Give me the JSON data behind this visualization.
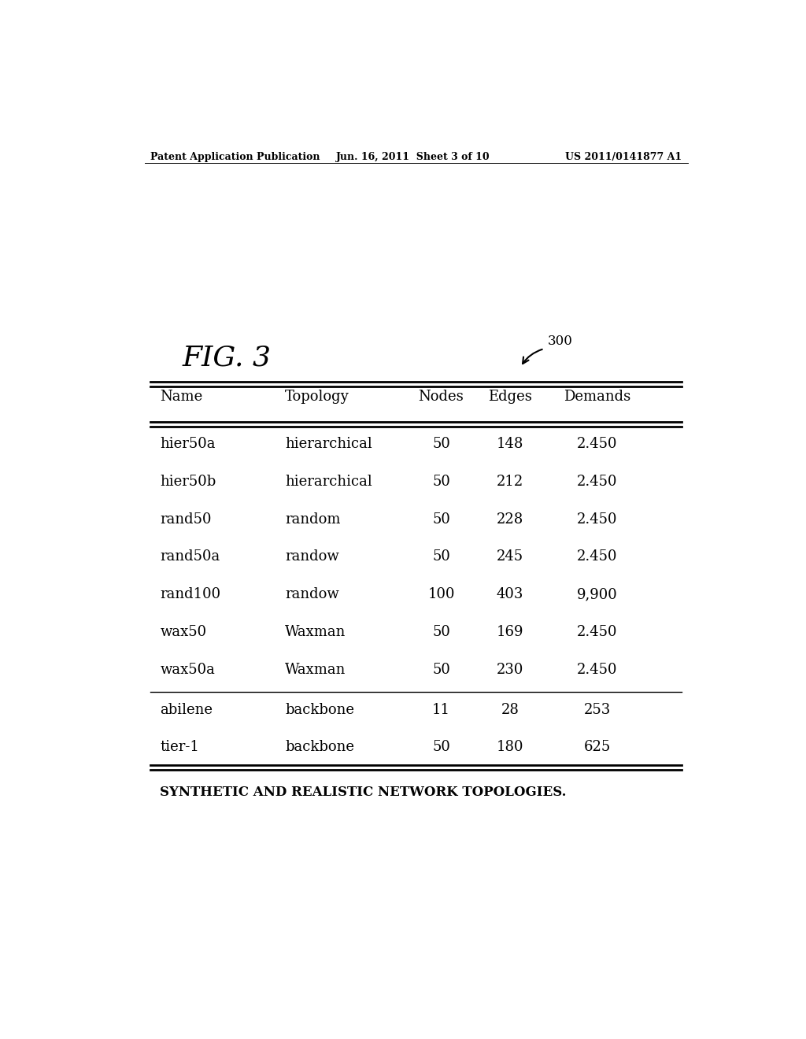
{
  "header_left": "Patent Application Publication",
  "header_center": "Jun. 16, 2011  Sheet 3 of 10",
  "header_right": "US 2011/0141877 A1",
  "fig_label": "FIG. 3",
  "ref_num": "300",
  "col_headers": [
    "Name",
    "Topology",
    "Nodes",
    "Edges",
    "Demands"
  ],
  "rows_group1": [
    [
      "hier50a",
      "hierarchical",
      "50",
      "148",
      "2.450"
    ],
    [
      "hier50b",
      "hierarchical",
      "50",
      "212",
      "2.450"
    ],
    [
      "rand50",
      "random",
      "50",
      "228",
      "2.450"
    ],
    [
      "rand50a",
      "randow",
      "50",
      "245",
      "2.450"
    ],
    [
      "rand100",
      "randow",
      "100",
      "403",
      "9,900"
    ],
    [
      "wax50",
      "Waxman",
      "50",
      "169",
      "2.450"
    ],
    [
      "wax50a",
      "Waxman",
      "50",
      "230",
      "2.450"
    ]
  ],
  "rows_group2": [
    [
      "abilene",
      "backbone",
      "11",
      "28",
      "253"
    ],
    [
      "tier-1",
      "backbone",
      "50",
      "180",
      "625"
    ]
  ],
  "caption": "SYNTHETIC AND REALISTIC NETWORK TOPOLOGIES.",
  "bg_color": "#ffffff",
  "text_color": "#000000"
}
